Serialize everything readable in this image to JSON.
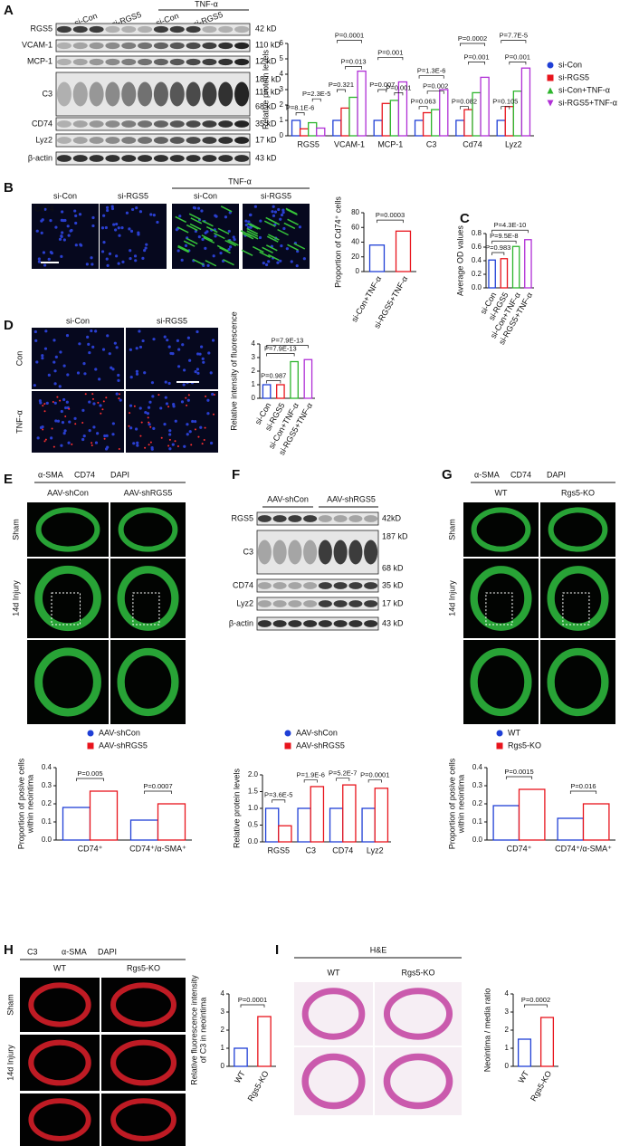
{
  "panels": {
    "letters": [
      "A",
      "B",
      "C",
      "D",
      "E",
      "F",
      "G",
      "H",
      "I"
    ],
    "a": {
      "lanes": [
        "si-Con",
        "si-RGS5",
        "si-Con",
        "si-RGS5"
      ],
      "treatment": "TNF-α",
      "rows": [
        "RGS5",
        "VCAM-1",
        "MCP-1",
        "C3",
        "CD74",
        "Lyz2",
        "β-actin"
      ],
      "sizes": [
        "42 kD",
        "110 kD",
        "12 kD",
        "187 kD",
        "115 kD",
        "68 kD",
        "35 kD",
        "17 kD",
        "43 kD"
      ]
    },
    "b": {
      "stain": "Cd74",
      "lanes": [
        "si-Con",
        "si-RGS5",
        "si-Con",
        "si-RGS5"
      ],
      "treatment": "TNF-α"
    },
    "d": {
      "cols": [
        "si-Con",
        "si-RGS5"
      ],
      "rows": [
        "Con",
        "TNF-α"
      ]
    },
    "e": {
      "stains": [
        "α-SMA",
        "CD74",
        "DAPI"
      ],
      "cols": [
        "AAV-shCon",
        "AAV-shRGS5"
      ],
      "rows": [
        "Sham",
        "14d Injury"
      ]
    },
    "f": {
      "groups": [
        "AAV-shCon",
        "AAV-shRGS5"
      ],
      "rows": [
        "RGS5",
        "C3",
        "CD74",
        "Lyz2",
        "β-actin"
      ],
      "sizes": [
        "42kD",
        "187 kD",
        "68 kD",
        "35 kD",
        "17 kD",
        "43 kD"
      ]
    },
    "g": {
      "stains": [
        "α-SMA",
        "CD74",
        "DAPI"
      ],
      "cols": [
        "WT",
        "Rgs5-KO"
      ],
      "rows": [
        "Sham",
        "14d Injury"
      ]
    },
    "h": {
      "stains": [
        "C3",
        "α-SMA",
        "DAPI"
      ],
      "cols": [
        "WT",
        "Rgs5-KO"
      ],
      "rows": [
        "Sham",
        "14d Injury"
      ]
    },
    "i": {
      "stain": "H&E",
      "cols": [
        "WT",
        "Rgs5-KO"
      ]
    }
  },
  "chart_data": [
    {
      "type": "bar",
      "ylabel": [
        "Relative protein levels"
      ],
      "categories": [
        "RGS5",
        "VCAM-1",
        "MCP-1",
        "C3",
        "Cd74",
        "Lyz2"
      ],
      "series": [
        {
          "name": "si-Con",
          "color": "#1f3fd6",
          "values": [
            1,
            1,
            1,
            1,
            1,
            1
          ]
        },
        {
          "name": "si-RGS5",
          "color": "#e8141c",
          "values": [
            0.45,
            1.8,
            2.1,
            1.5,
            1.7,
            1.9
          ]
        },
        {
          "name": "si-Con+TNF-α",
          "color": "#2db52d",
          "values": [
            0.85,
            2.5,
            2.3,
            1.7,
            2.8,
            2.9
          ]
        },
        {
          "name": "si-RGS5+TNF-α",
          "color": "#b02fd6",
          "values": [
            0.5,
            4.2,
            3.5,
            3.0,
            3.8,
            4.4
          ]
        }
      ],
      "ylim": [
        0,
        6
      ],
      "yticks": [
        0,
        1,
        2,
        3,
        4,
        5,
        6
      ],
      "annotations": [
        "P=8.1E-6",
        "P=2.3E-5",
        "P=0.321",
        "P=0.013",
        "P=0.0001",
        "P=0.001",
        "P=0.007",
        "P=0.001",
        "P=0.002",
        "P=0.063",
        "P=1.3E-6",
        "P=0.0002",
        "P=0.001",
        "P=0.082",
        "P=0.105",
        "P=0.001",
        "P=7.7E-5"
      ]
    },
    {
      "type": "bar",
      "ylabel": [
        "Proportion of Cd74⁺ cells"
      ],
      "categories": [
        "si-Con+TNF-α",
        "si-RGS5+TNF-α"
      ],
      "values": [
        36,
        55
      ],
      "colors": [
        "#1f3fd6",
        "#e8141c"
      ],
      "ylim": [
        0,
        80
      ],
      "yticks": [
        0,
        20,
        40,
        60,
        80
      ],
      "annotations": [
        "P=0.0003"
      ]
    },
    {
      "type": "bar",
      "ylabel": [
        "Average OD values"
      ],
      "categories": [
        "si-Con",
        "si-RGS5",
        "si-Con+TNF-α",
        "si-RGS5+TNF-α"
      ],
      "values": [
        0.41,
        0.43,
        0.61,
        0.71
      ],
      "colors": [
        "#1f3fd6",
        "#e8141c",
        "#2db52d",
        "#b02fd6"
      ],
      "ylim": [
        0,
        0.8
      ],
      "yticks": [
        {
          "value": 0,
          "label": "0.0"
        },
        0.2,
        0.4,
        0.6,
        0.8
      ],
      "annotations": [
        "P=0.983",
        "P=9.5E-8",
        "P=4.3E-10"
      ]
    },
    {
      "type": "bar",
      "ylabel": [
        "Relative intensity of fluorescence"
      ],
      "categories": [
        "si-Con",
        "si-RGS5",
        "si-Con+TNF-α",
        "si-RGS5+TNF-α"
      ],
      "values": [
        1.0,
        1.0,
        2.7,
        2.85
      ],
      "colors": [
        "#1f3fd6",
        "#e8141c",
        "#2db52d",
        "#b02fd6"
      ],
      "ylim": [
        0,
        4
      ],
      "yticks": [
        0,
        1,
        2,
        3,
        4
      ],
      "annotations": [
        "P=0.987",
        "P=7.9E-13",
        "P=7.9E-13"
      ]
    },
    {
      "type": "bar",
      "ylabel": [
        "Proportion of posive cells",
        "within neointima"
      ],
      "categories": [
        "CD74⁺",
        "CD74⁺/α-SMA⁺"
      ],
      "series": [
        {
          "name": "AAV-shCon",
          "color": "#1f3fd6",
          "values": [
            0.18,
            0.11
          ]
        },
        {
          "name": "AAV-shRGS5",
          "color": "#e8141c",
          "values": [
            0.27,
            0.2
          ]
        }
      ],
      "ylim": [
        0,
        0.4
      ],
      "yticks": [
        {
          "value": 0,
          "label": "0.0"
        },
        0.1,
        0.2,
        0.3,
        0.4
      ],
      "annotations": [
        "P=0.005",
        "P=0.0007"
      ]
    },
    {
      "type": "bar",
      "ylabel": [
        "Relative protein levels"
      ],
      "categories": [
        "RGS5",
        "C3",
        "CD74",
        "Lyz2"
      ],
      "series": [
        {
          "name": "AAV-shCon",
          "color": "#1f3fd6",
          "values": [
            1,
            1,
            1,
            1
          ]
        },
        {
          "name": "AAV-shRGS5",
          "color": "#e8141c",
          "values": [
            0.48,
            1.65,
            1.7,
            1.6
          ]
        }
      ],
      "ylim": [
        0,
        2
      ],
      "yticks": [
        {
          "value": 0,
          "label": "0.0"
        },
        0.5,
        {
          "value": 1,
          "label": "1.0"
        },
        1.5,
        {
          "value": 2,
          "label": "2.0"
        }
      ],
      "annotations": [
        "P=3.6E-5",
        "P=1.9E-6",
        "P=5.2E-7",
        "P=0.0001"
      ]
    },
    {
      "type": "bar",
      "ylabel": [
        "Proportion of posive cells",
        "within neointima"
      ],
      "categories": [
        "CD74⁺",
        "CD74⁺/α-SMA⁺"
      ],
      "series": [
        {
          "name": "WT",
          "color": "#1f3fd6",
          "values": [
            0.19,
            0.12
          ]
        },
        {
          "name": "Rgs5-KO",
          "color": "#e8141c",
          "values": [
            0.28,
            0.2
          ]
        }
      ],
      "ylim": [
        0,
        0.4
      ],
      "yticks": [
        {
          "value": 0,
          "label": "0.0"
        },
        0.1,
        0.2,
        0.3,
        0.4
      ],
      "annotations": [
        "P=0.0015",
        "P=0.016"
      ]
    },
    {
      "type": "bar",
      "ylabel": [
        "Relative fluorescence intensity",
        "of C3 in neointima"
      ],
      "categories": [
        "WT",
        "Rgs5-KO"
      ],
      "values": [
        1.0,
        2.75
      ],
      "colors": [
        "#1f3fd6",
        "#e8141c"
      ],
      "ylim": [
        0,
        4
      ],
      "yticks": [
        0,
        1,
        2,
        3,
        4
      ],
      "annotations": [
        "P=0.0001"
      ]
    },
    {
      "type": "bar",
      "ylabel": [
        "Neointima / media ratio"
      ],
      "categories": [
        "WT",
        "Rgs5-KO"
      ],
      "values": [
        1.5,
        2.7
      ],
      "colors": [
        "#1f3fd6",
        "#e8141c"
      ],
      "ylim": [
        0,
        4
      ],
      "yticks": [
        0,
        1,
        2,
        3,
        4
      ],
      "annotations": [
        "P=0.0002"
      ]
    }
  ]
}
